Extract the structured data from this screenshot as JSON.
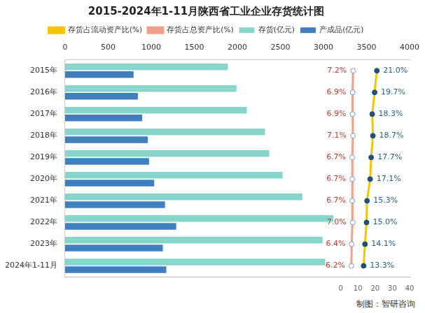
{
  "chart_data": {
    "type": "bar",
    "orientation": "horizontal",
    "title": "2015-2024年1-11月陕西省工业企业存货统计图",
    "source": "制图：智研咨询",
    "legend": "top",
    "grid": false,
    "data_labels": true,
    "categories": [
      "2015年",
      "2016年",
      "2017年",
      "2018年",
      "2019年",
      "2020年",
      "2021年",
      "2022年",
      "2023年",
      "2024年1-11月"
    ],
    "ylim": [
      0,
      4000
    ],
    "yticks": [
      0,
      500,
      1000,
      1500,
      2000,
      2500,
      3000,
      3500,
      4000
    ],
    "y2lim": [
      -160,
      40
    ],
    "y2ticks": [
      0,
      10,
      20,
      30,
      40
    ],
    "series": [
      {
        "name": "存货(亿元)",
        "type": "bar",
        "color": "#86d6cb",
        "values": [
          1890,
          1990,
          2110,
          2320,
          2370,
          2525,
          2755,
          3115,
          2990,
          3020
        ]
      },
      {
        "name": "产成品(亿元)",
        "type": "bar",
        "color": "#3f7fc0",
        "values": [
          795,
          845,
          895,
          960,
          975,
          1035,
          1160,
          1290,
          1135,
          1175
        ]
      },
      {
        "name": "存货占流动资产比(%)",
        "type": "line",
        "axis": "y2",
        "color": "#f5c400",
        "marker": "circle",
        "values": [
          21.0,
          19.7,
          18.3,
          18.7,
          17.7,
          17.1,
          15.3,
          15.0,
          14.1,
          13.3
        ],
        "value_labels": [
          "21.0%",
          "19.7%",
          "18.3%",
          "18.7%",
          "17.7%",
          "17.1%",
          "15.3%",
          "15.0%",
          "14.1%",
          "13.3%"
        ]
      },
      {
        "name": "存货占总资产比(%)",
        "type": "line",
        "axis": "y2",
        "color": "#f0a08a",
        "marker": "circle",
        "values": [
          7.2,
          6.9,
          6.9,
          7.1,
          6.7,
          6.7,
          6.7,
          7.0,
          6.4,
          6.2
        ],
        "value_labels": [
          "7.2%",
          "6.9%",
          "6.9%",
          "7.1%",
          "6.7%",
          "6.7%",
          "6.7%",
          "7.0%",
          "6.4%",
          "6.2%"
        ]
      }
    ]
  }
}
